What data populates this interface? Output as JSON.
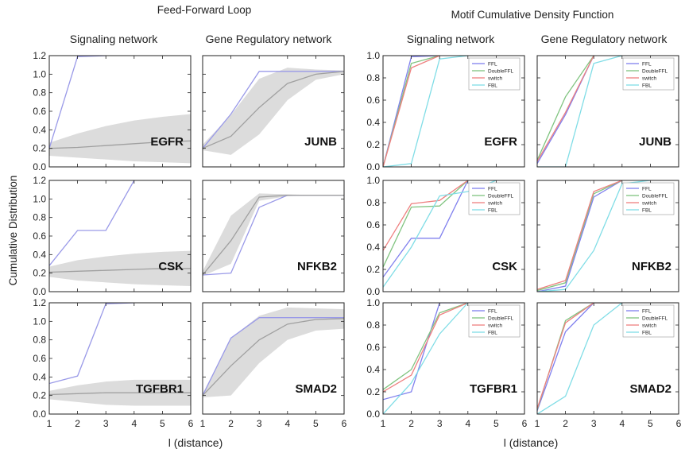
{
  "figure": {
    "left_title": "Feed-Forward Loop",
    "right_title": "Motif  Cumulative Density Function",
    "y_label": "Cumulative Distribution",
    "x_label_left": "l (distance)",
    "x_label_right": "l (distance)",
    "col_headers": [
      "Signaling network",
      "Gene Regulatory network",
      "Signaling network",
      "Gene Regulatory network"
    ]
  },
  "chart_data": [
    {
      "group": "Feed-Forward Loop",
      "column": "Signaling network",
      "gene": "EGFR",
      "type": "line",
      "xlim": [
        1,
        6
      ],
      "ylim": [
        0,
        1.2
      ],
      "xticks": [
        1,
        2,
        3,
        4,
        5,
        6
      ],
      "yticks": [
        0,
        0.2,
        0.4,
        0.6,
        0.8,
        1.0,
        1.2
      ],
      "series": [
        {
          "role": "observed",
          "x": [
            1,
            2,
            3
          ],
          "y": [
            0.2,
            1.19,
            1.2
          ]
        },
        {
          "role": "mean",
          "x": [
            1,
            2,
            3,
            4,
            5,
            6
          ],
          "y": [
            0.2,
            0.21,
            0.23,
            0.25,
            0.27,
            0.28
          ]
        }
      ],
      "band": {
        "x": [
          1,
          2,
          3,
          4,
          5,
          6
        ],
        "lower": [
          0.12,
          0.1,
          0.08,
          0.06,
          0.05,
          0.04
        ],
        "upper": [
          0.26,
          0.36,
          0.44,
          0.5,
          0.54,
          0.57
        ]
      }
    },
    {
      "group": "Feed-Forward Loop",
      "column": "Gene Regulatory network",
      "gene": "JUNB",
      "type": "line",
      "xlim": [
        1,
        6
      ],
      "ylim": [
        0,
        1.2
      ],
      "xticks": [
        1,
        2,
        3,
        4,
        5,
        6
      ],
      "yticks": [
        0,
        0.2,
        0.4,
        0.6,
        0.8,
        1.0,
        1.2
      ],
      "series": [
        {
          "role": "observed",
          "x": [
            1,
            2,
            3,
            4,
            5,
            6
          ],
          "y": [
            0.2,
            0.57,
            1.03,
            1.03,
            1.03,
            1.03
          ]
        },
        {
          "role": "mean",
          "x": [
            1,
            2,
            3,
            4,
            5,
            6
          ],
          "y": [
            0.2,
            0.33,
            0.64,
            0.9,
            1.0,
            1.03
          ]
        }
      ],
      "band": {
        "x": [
          1,
          2,
          3,
          4,
          5,
          6
        ],
        "lower": [
          0.18,
          0.13,
          0.35,
          0.72,
          0.94,
          1.0
        ],
        "upper": [
          0.24,
          0.56,
          0.95,
          1.07,
          1.05,
          1.04
        ]
      }
    },
    {
      "group": "Feed-Forward Loop",
      "column": "Signaling network",
      "gene": "CSK",
      "type": "line",
      "xlim": [
        1,
        6
      ],
      "ylim": [
        0,
        1.2
      ],
      "xticks": [
        1,
        2,
        3,
        4,
        5,
        6
      ],
      "yticks": [
        0,
        0.2,
        0.4,
        0.6,
        0.8,
        1.0,
        1.2
      ],
      "series": [
        {
          "role": "observed",
          "x": [
            1,
            2,
            3,
            4
          ],
          "y": [
            0.28,
            0.66,
            0.66,
            1.2
          ]
        },
        {
          "role": "mean",
          "x": [
            1,
            2,
            3,
            4,
            5,
            6
          ],
          "y": [
            0.21,
            0.22,
            0.23,
            0.24,
            0.25,
            0.25
          ]
        }
      ],
      "band": {
        "x": [
          1,
          2,
          3,
          4,
          5,
          6
        ],
        "lower": [
          0.16,
          0.12,
          0.1,
          0.08,
          0.07,
          0.06
        ],
        "upper": [
          0.27,
          0.34,
          0.38,
          0.41,
          0.43,
          0.44
        ]
      }
    },
    {
      "group": "Feed-Forward Loop",
      "column": "Gene Regulatory network",
      "gene": "NFKB2",
      "type": "line",
      "xlim": [
        1,
        6
      ],
      "ylim": [
        0,
        1.2
      ],
      "xticks": [
        1,
        2,
        3,
        4,
        5,
        6
      ],
      "yticks": [
        0,
        0.2,
        0.4,
        0.6,
        0.8,
        1.0,
        1.2
      ],
      "series": [
        {
          "role": "observed",
          "x": [
            1,
            2,
            3,
            4,
            5,
            6
          ],
          "y": [
            0.18,
            0.2,
            0.91,
            1.04,
            1.04,
            1.04
          ]
        },
        {
          "role": "mean",
          "x": [
            1,
            2,
            3,
            4,
            5,
            6
          ],
          "y": [
            0.18,
            0.55,
            1.02,
            1.04,
            1.04,
            1.04
          ]
        }
      ],
      "band": {
        "x": [
          1,
          2,
          3,
          4,
          5,
          6
        ],
        "lower": [
          0.17,
          0.3,
          0.98,
          1.03,
          1.04,
          1.04
        ],
        "upper": [
          0.22,
          0.82,
          1.06,
          1.05,
          1.04,
          1.04
        ]
      }
    },
    {
      "group": "Feed-Forward Loop",
      "column": "Signaling network",
      "gene": "TGFBR1",
      "type": "line",
      "xlim": [
        1,
        6
      ],
      "ylim": [
        0,
        1.2
      ],
      "xticks": [
        1,
        2,
        3,
        4,
        5,
        6
      ],
      "yticks": [
        0,
        0.2,
        0.4,
        0.6,
        0.8,
        1.0,
        1.2
      ],
      "series": [
        {
          "role": "observed",
          "x": [
            1,
            2,
            3,
            4
          ],
          "y": [
            0.33,
            0.41,
            1.19,
            1.2
          ]
        },
        {
          "role": "mean",
          "x": [
            1,
            2,
            3,
            4,
            5,
            6
          ],
          "y": [
            0.21,
            0.22,
            0.23,
            0.23,
            0.23,
            0.23
          ]
        }
      ],
      "band": {
        "x": [
          1,
          2,
          3,
          4,
          5,
          6
        ],
        "lower": [
          0.16,
          0.13,
          0.1,
          0.09,
          0.09,
          0.09
        ],
        "upper": [
          0.25,
          0.31,
          0.35,
          0.37,
          0.37,
          0.37
        ]
      }
    },
    {
      "group": "Feed-Forward Loop",
      "column": "Gene Regulatory network",
      "gene": "SMAD2",
      "type": "line",
      "xlim": [
        1,
        6
      ],
      "ylim": [
        0,
        1.2
      ],
      "xticks": [
        1,
        2,
        3,
        4,
        5,
        6
      ],
      "yticks": [
        0,
        0.2,
        0.4,
        0.6,
        0.8,
        1.0,
        1.2
      ],
      "series": [
        {
          "role": "observed",
          "x": [
            1,
            2,
            3,
            4,
            5,
            6
          ],
          "y": [
            0.2,
            0.82,
            1.04,
            1.04,
            1.04,
            1.04
          ]
        },
        {
          "role": "mean",
          "x": [
            1,
            2,
            3,
            4,
            5,
            6
          ],
          "y": [
            0.2,
            0.52,
            0.8,
            0.97,
            1.02,
            1.03
          ]
        }
      ],
      "band": {
        "x": [
          1,
          2,
          3,
          4,
          5,
          6
        ],
        "lower": [
          0.18,
          0.2,
          0.55,
          0.8,
          0.9,
          0.92
        ],
        "upper": [
          0.22,
          0.82,
          1.06,
          1.15,
          1.14,
          1.13
        ]
      }
    },
    {
      "group": "Motif  Cumulative Density Function",
      "column": "Signaling network",
      "gene": "EGFR",
      "type": "line",
      "xlim": [
        1,
        6
      ],
      "ylim": [
        0,
        1.0
      ],
      "xticks": [
        1,
        2,
        3,
        4,
        5,
        6
      ],
      "yticks": [
        0,
        0.2,
        0.4,
        0.6,
        0.8,
        1.0
      ],
      "legend": [
        "FFL",
        "DoubleFFL",
        "switch",
        "FBL"
      ],
      "legend_position": "top-right",
      "series": [
        {
          "name": "FFL",
          "x": [
            1,
            2,
            3
          ],
          "y": [
            0.0,
            0.99,
            1.0
          ]
        },
        {
          "name": "DoubleFFL",
          "x": [
            1,
            2,
            3
          ],
          "y": [
            0.0,
            0.93,
            1.0
          ]
        },
        {
          "name": "switch",
          "x": [
            1,
            2,
            3
          ],
          "y": [
            0.0,
            0.89,
            1.0
          ]
        },
        {
          "name": "FBL",
          "x": [
            1,
            2,
            3,
            4
          ],
          "y": [
            0.0,
            0.03,
            0.97,
            1.0
          ]
        }
      ]
    },
    {
      "group": "Motif  Cumulative Density Function",
      "column": "Gene Regulatory network",
      "gene": "JUNB",
      "type": "line",
      "xlim": [
        1,
        6
      ],
      "ylim": [
        0,
        1.0
      ],
      "xticks": [
        1,
        2,
        3,
        4,
        5,
        6
      ],
      "yticks": [
        0,
        0.2,
        0.4,
        0.6,
        0.8,
        1.0
      ],
      "legend": [
        "FFL",
        "DoubleFFL",
        "switch",
        "FBL"
      ],
      "legend_position": "top-right",
      "series": [
        {
          "name": "FFL",
          "x": [
            1,
            2,
            3
          ],
          "y": [
            0.03,
            0.47,
            1.0
          ]
        },
        {
          "name": "DoubleFFL",
          "x": [
            1,
            2,
            3
          ],
          "y": [
            0.06,
            0.63,
            1.0
          ]
        },
        {
          "name": "switch",
          "x": [
            1,
            2,
            3
          ],
          "y": [
            0.05,
            0.49,
            1.0
          ]
        },
        {
          "name": "FBL",
          "x": [
            1,
            2,
            3,
            4
          ],
          "y": [
            0.0,
            0.0,
            0.93,
            1.0
          ]
        }
      ]
    },
    {
      "group": "Motif  Cumulative Density Function",
      "column": "Signaling network",
      "gene": "CSK",
      "type": "line",
      "xlim": [
        1,
        6
      ],
      "ylim": [
        0,
        1.0
      ],
      "xticks": [
        1,
        2,
        3,
        4,
        5,
        6
      ],
      "yticks": [
        0,
        0.2,
        0.4,
        0.6,
        0.8,
        1.0
      ],
      "legend": [
        "FFL",
        "DoubleFFL",
        "switch",
        "FBL"
      ],
      "legend_position": "top-right",
      "series": [
        {
          "name": "FFL",
          "x": [
            1,
            2,
            3,
            4
          ],
          "y": [
            0.13,
            0.48,
            0.48,
            1.0
          ]
        },
        {
          "name": "DoubleFFL",
          "x": [
            1,
            2,
            3,
            4
          ],
          "y": [
            0.22,
            0.76,
            0.77,
            1.0
          ]
        },
        {
          "name": "switch",
          "x": [
            1,
            2,
            3,
            4
          ],
          "y": [
            0.37,
            0.79,
            0.82,
            1.0
          ]
        },
        {
          "name": "FBL",
          "x": [
            1,
            2,
            3,
            4,
            5
          ],
          "y": [
            0.04,
            0.4,
            0.86,
            0.9,
            1.0
          ]
        }
      ]
    },
    {
      "group": "Motif  Cumulative Density Function",
      "column": "Gene Regulatory network",
      "gene": "NFKB2",
      "type": "line",
      "xlim": [
        1,
        6
      ],
      "ylim": [
        0,
        1.0
      ],
      "xticks": [
        1,
        2,
        3,
        4,
        5,
        6
      ],
      "yticks": [
        0,
        0.2,
        0.4,
        0.6,
        0.8,
        1.0
      ],
      "legend": [
        "FFL",
        "DoubleFFL",
        "switch",
        "FBL"
      ],
      "legend_position": "top-right",
      "series": [
        {
          "name": "FFL",
          "x": [
            1,
            2,
            3,
            4
          ],
          "y": [
            0.0,
            0.05,
            0.85,
            1.0
          ]
        },
        {
          "name": "DoubleFFL",
          "x": [
            1,
            2,
            3,
            4
          ],
          "y": [
            0.01,
            0.08,
            0.88,
            1.0
          ]
        },
        {
          "name": "switch",
          "x": [
            1,
            2,
            3,
            4
          ],
          "y": [
            0.02,
            0.1,
            0.9,
            1.0
          ]
        },
        {
          "name": "FBL",
          "x": [
            1,
            2,
            3,
            4,
            5
          ],
          "y": [
            0.0,
            0.02,
            0.37,
            0.97,
            1.0
          ]
        }
      ]
    },
    {
      "group": "Motif  Cumulative Density Function",
      "column": "Signaling network",
      "gene": "TGFBR1",
      "type": "line",
      "xlim": [
        1,
        6
      ],
      "ylim": [
        0,
        1.0
      ],
      "xticks": [
        1,
        2,
        3,
        4,
        5,
        6
      ],
      "yticks": [
        0,
        0.2,
        0.4,
        0.6,
        0.8,
        1.0
      ],
      "legend": [
        "FFL",
        "DoubleFFL",
        "switch",
        "FBL"
      ],
      "legend_position": "top-right",
      "series": [
        {
          "name": "FFL",
          "x": [
            1,
            2,
            3,
            4
          ],
          "y": [
            0.13,
            0.2,
            1.0,
            1.0
          ]
        },
        {
          "name": "DoubleFFL",
          "x": [
            1,
            2,
            3,
            4
          ],
          "y": [
            0.22,
            0.4,
            0.91,
            1.0
          ]
        },
        {
          "name": "switch",
          "x": [
            1,
            2,
            3,
            4
          ],
          "y": [
            0.2,
            0.35,
            0.89,
            1.0
          ]
        },
        {
          "name": "FBL",
          "x": [
            1,
            2,
            3,
            4
          ],
          "y": [
            0.0,
            0.28,
            0.72,
            1.0
          ]
        }
      ]
    },
    {
      "group": "Motif  Cumulative Density Function",
      "column": "Gene Regulatory network",
      "gene": "SMAD2",
      "type": "line",
      "xlim": [
        1,
        6
      ],
      "ylim": [
        0,
        1.0
      ],
      "xticks": [
        1,
        2,
        3,
        4,
        5,
        6
      ],
      "yticks": [
        0,
        0.2,
        0.4,
        0.6,
        0.8,
        1.0
      ],
      "legend": [
        "FFL",
        "DoubleFFL",
        "switch",
        "FBL"
      ],
      "legend_position": "top-right",
      "series": [
        {
          "name": "FFL",
          "x": [
            1,
            2,
            3,
            4
          ],
          "y": [
            0.03,
            0.74,
            1.0,
            1.0
          ]
        },
        {
          "name": "DoubleFFL",
          "x": [
            1,
            2,
            3,
            4
          ],
          "y": [
            0.04,
            0.84,
            1.0,
            1.0
          ]
        },
        {
          "name": "switch",
          "x": [
            1,
            2,
            3,
            4
          ],
          "y": [
            0.05,
            0.82,
            1.0,
            1.0
          ]
        },
        {
          "name": "FBL",
          "x": [
            1,
            2,
            3,
            4
          ],
          "y": [
            0.0,
            0.16,
            0.8,
            1.0
          ]
        }
      ]
    }
  ],
  "colors": {
    "FFL": "#8080ee",
    "DoubleFFL": "#80c480",
    "switch": "#ee8080",
    "FBL": "#80dde6",
    "observed": "#9a9ae8",
    "mean": "#a0a0a0",
    "band": "#dcdcdc",
    "axis": "#222222"
  }
}
